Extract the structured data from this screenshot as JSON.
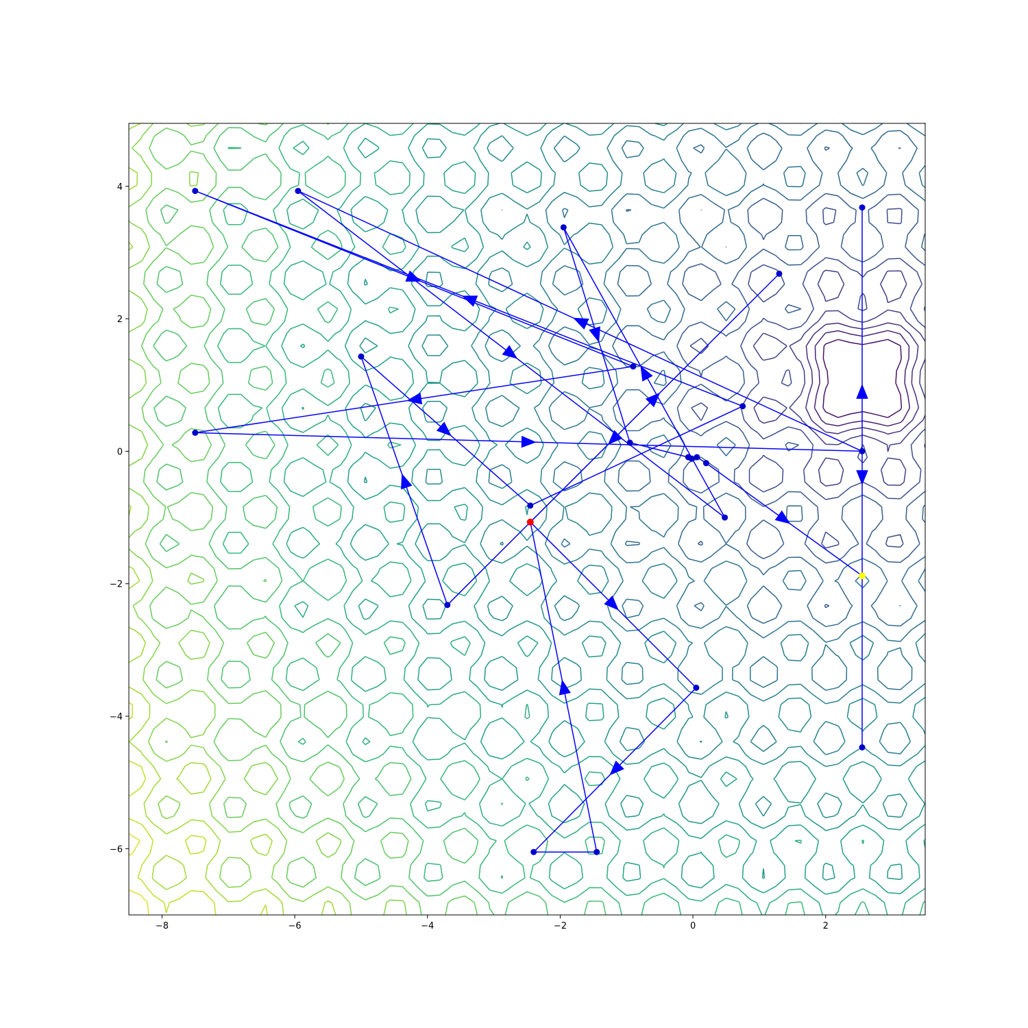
{
  "chart_data": {
    "type": "contour-with-path",
    "title": "",
    "xlabel": "",
    "ylabel": "",
    "xlim": [
      -8.5,
      3.5
    ],
    "ylim": [
      -7.0,
      4.95
    ],
    "xticks": [
      -8,
      -6,
      -4,
      -2,
      0,
      2
    ],
    "yticks": [
      -6,
      -4,
      -2,
      0,
      2,
      4
    ],
    "xtick_labels": [
      "−8",
      "−6",
      "−4",
      "−2",
      "0",
      "2"
    ],
    "ytick_labels": [
      "−6",
      "−4",
      "−2",
      "0",
      "2",
      "4"
    ],
    "grid": false,
    "legend": "none",
    "contour": {
      "colormap": "viridis",
      "levels": 20,
      "global_minimum": [
        2.55,
        1.1
      ],
      "lattice_period": 1.0
    },
    "path": {
      "color": "#0000ff",
      "points": [
        [
          -2.45,
          -1.07
        ],
        [
          0.05,
          -3.57
        ],
        [
          -2.4,
          -6.05
        ],
        [
          -1.45,
          -6.05
        ],
        [
          -2.45,
          -1.07
        ],
        [
          1.3,
          2.68
        ],
        [
          -3.7,
          -2.32
        ],
        [
          -5.0,
          1.43
        ],
        [
          -2.45,
          -0.82
        ],
        [
          0.75,
          0.68
        ],
        [
          -7.5,
          3.93
        ],
        [
          -0.9,
          1.28
        ],
        [
          -7.5,
          0.28
        ],
        [
          2.55,
          0.0
        ],
        [
          -5.95,
          3.93
        ],
        [
          0.48,
          -1.0
        ],
        [
          -1.95,
          3.38
        ],
        [
          -0.95,
          0.13
        ],
        [
          -0.07,
          -0.09
        ],
        [
          -0.02,
          -0.11
        ],
        [
          0.06,
          -0.09
        ],
        [
          0.2,
          -0.18
        ],
        [
          2.55,
          -1.88
        ],
        [
          2.55,
          3.68
        ],
        [
          2.55,
          -4.47
        ]
      ],
      "arrows_between": [
        [
          0,
          1
        ],
        [
          1,
          2
        ],
        [
          3,
          4
        ],
        [
          4,
          5
        ],
        [
          5,
          6
        ],
        [
          6,
          7
        ],
        [
          7,
          8
        ],
        [
          9,
          10
        ],
        [
          10,
          11
        ],
        [
          11,
          12
        ],
        [
          12,
          13
        ],
        [
          13,
          14
        ],
        [
          14,
          15
        ],
        [
          15,
          16
        ],
        [
          16,
          17
        ],
        [
          21,
          22
        ],
        [
          22,
          23
        ],
        [
          23,
          24
        ]
      ],
      "point_color": "#0000cc",
      "start_point": [
        -2.45,
        -1.07
      ],
      "start_color": "#ff0000",
      "end_point": [
        2.55,
        -1.88
      ],
      "end_color": "#ffff00"
    }
  }
}
